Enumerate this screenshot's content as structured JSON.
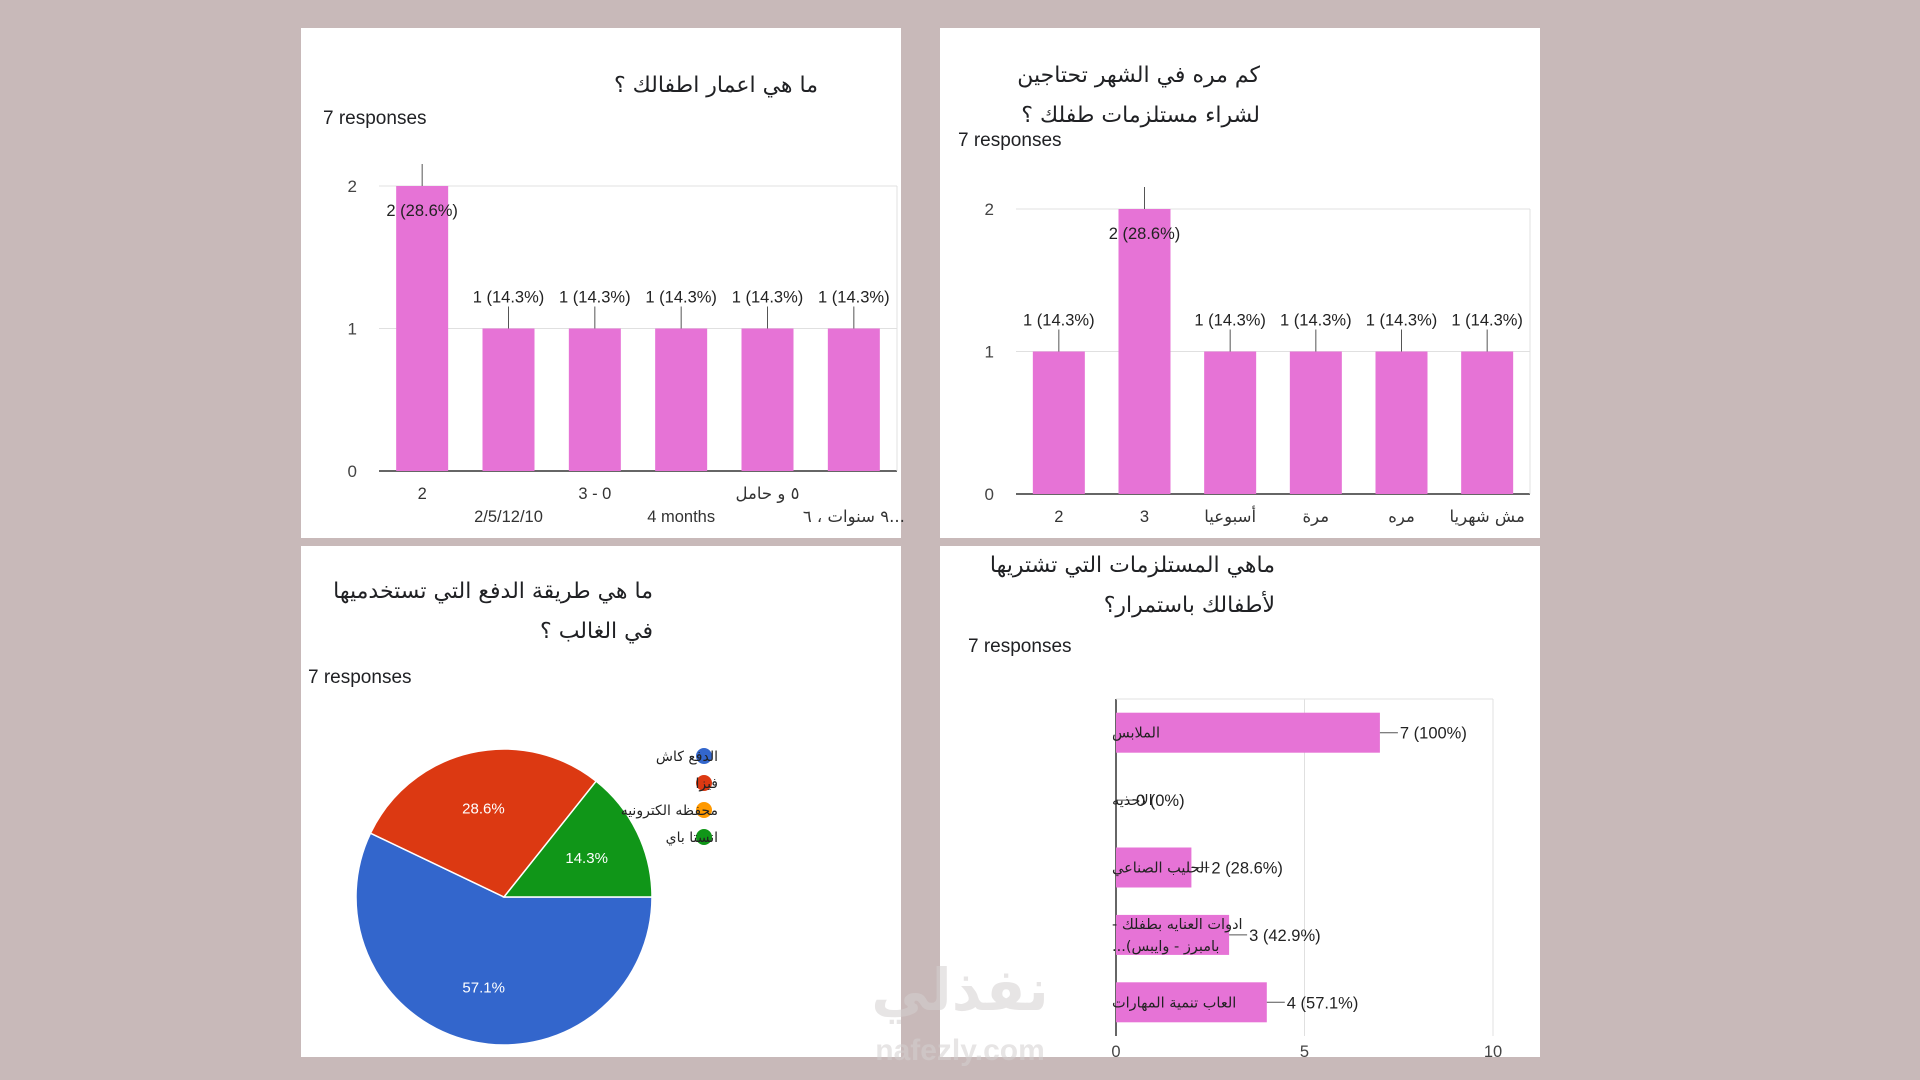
{
  "colors": {
    "background": "#c8b9b9",
    "bar": "#e673d6",
    "blue": "#3366cc",
    "red": "#dc3912",
    "orange": "#ff9900",
    "green": "#109618"
  },
  "charts": [
    {
      "title": "ما هي اعمار اطفالك ؟",
      "responses": "7 responses",
      "chart_data": {
        "type": "bar",
        "categories": [
          "2",
          "2/5/12/10",
          "3 - 0",
          "4 months",
          "٥ و حامل",
          "٩ سنوات ، ٦..."
        ],
        "values": [
          2,
          1,
          1,
          1,
          1,
          1
        ],
        "value_labels": [
          "2 (28.6%)",
          "1 (14.3%)",
          "1 (14.3%)",
          "1 (14.3%)",
          "1 (14.3%)",
          "1 (14.3%)"
        ],
        "yticks": [
          "0",
          "1",
          "2"
        ],
        "ylim": [
          0,
          2
        ]
      }
    },
    {
      "title": "كم مره في الشهر تحتاجين لشراء مستلزمات طفلك ؟",
      "responses": "7 responses",
      "chart_data": {
        "type": "bar",
        "categories": [
          "2",
          "3",
          "أسبوعيا",
          "مرة",
          "مره",
          "مش شهريا"
        ],
        "values": [
          1,
          2,
          1,
          1,
          1,
          1
        ],
        "value_labels": [
          "1 (14.3%)",
          "2 (28.6%)",
          "1 (14.3%)",
          "1 (14.3%)",
          "1 (14.3%)",
          "1 (14.3%)"
        ],
        "yticks": [
          "0",
          "1",
          "2"
        ],
        "ylim": [
          0,
          2
        ]
      }
    },
    {
      "title": "ما هي طريقة الدفع التي تستخدميها في الغالب ؟",
      "responses": "7 responses",
      "chart_data": {
        "type": "pie",
        "labels": [
          "الدفع كاش",
          "فيزا",
          "محفظه الكترونيه",
          "انستا باي"
        ],
        "values": [
          57.1,
          28.6,
          0,
          14.3
        ],
        "slice_labels": [
          "57.1%",
          "28.6%",
          "",
          "14.3%"
        ],
        "legend_position": "right"
      }
    },
    {
      "title": "ماهي المستلزمات التي تشتريها لأطفالك باستمرار؟",
      "responses": "7 responses",
      "chart_data": {
        "type": "bar",
        "orientation": "horizontal",
        "categories": [
          "الملابس",
          "الاحذيه",
          "الحليب الصناعي",
          "ادوات العنايه بطفلك - بامبرز - وايبس)...",
          "العاب تنمية المهارات"
        ],
        "values": [
          7,
          0,
          2,
          3,
          4
        ],
        "value_labels": [
          "7 (100%)",
          "0 (0%)",
          "2 (28.6%)",
          "3 (42.9%)",
          "4 (57.1%)"
        ],
        "xticks": [
          "0",
          "5",
          "10"
        ],
        "xlim": [
          0,
          10
        ]
      }
    }
  ],
  "watermark": {
    "arabic": "نفذلي",
    "latin": "nafezly.com"
  }
}
